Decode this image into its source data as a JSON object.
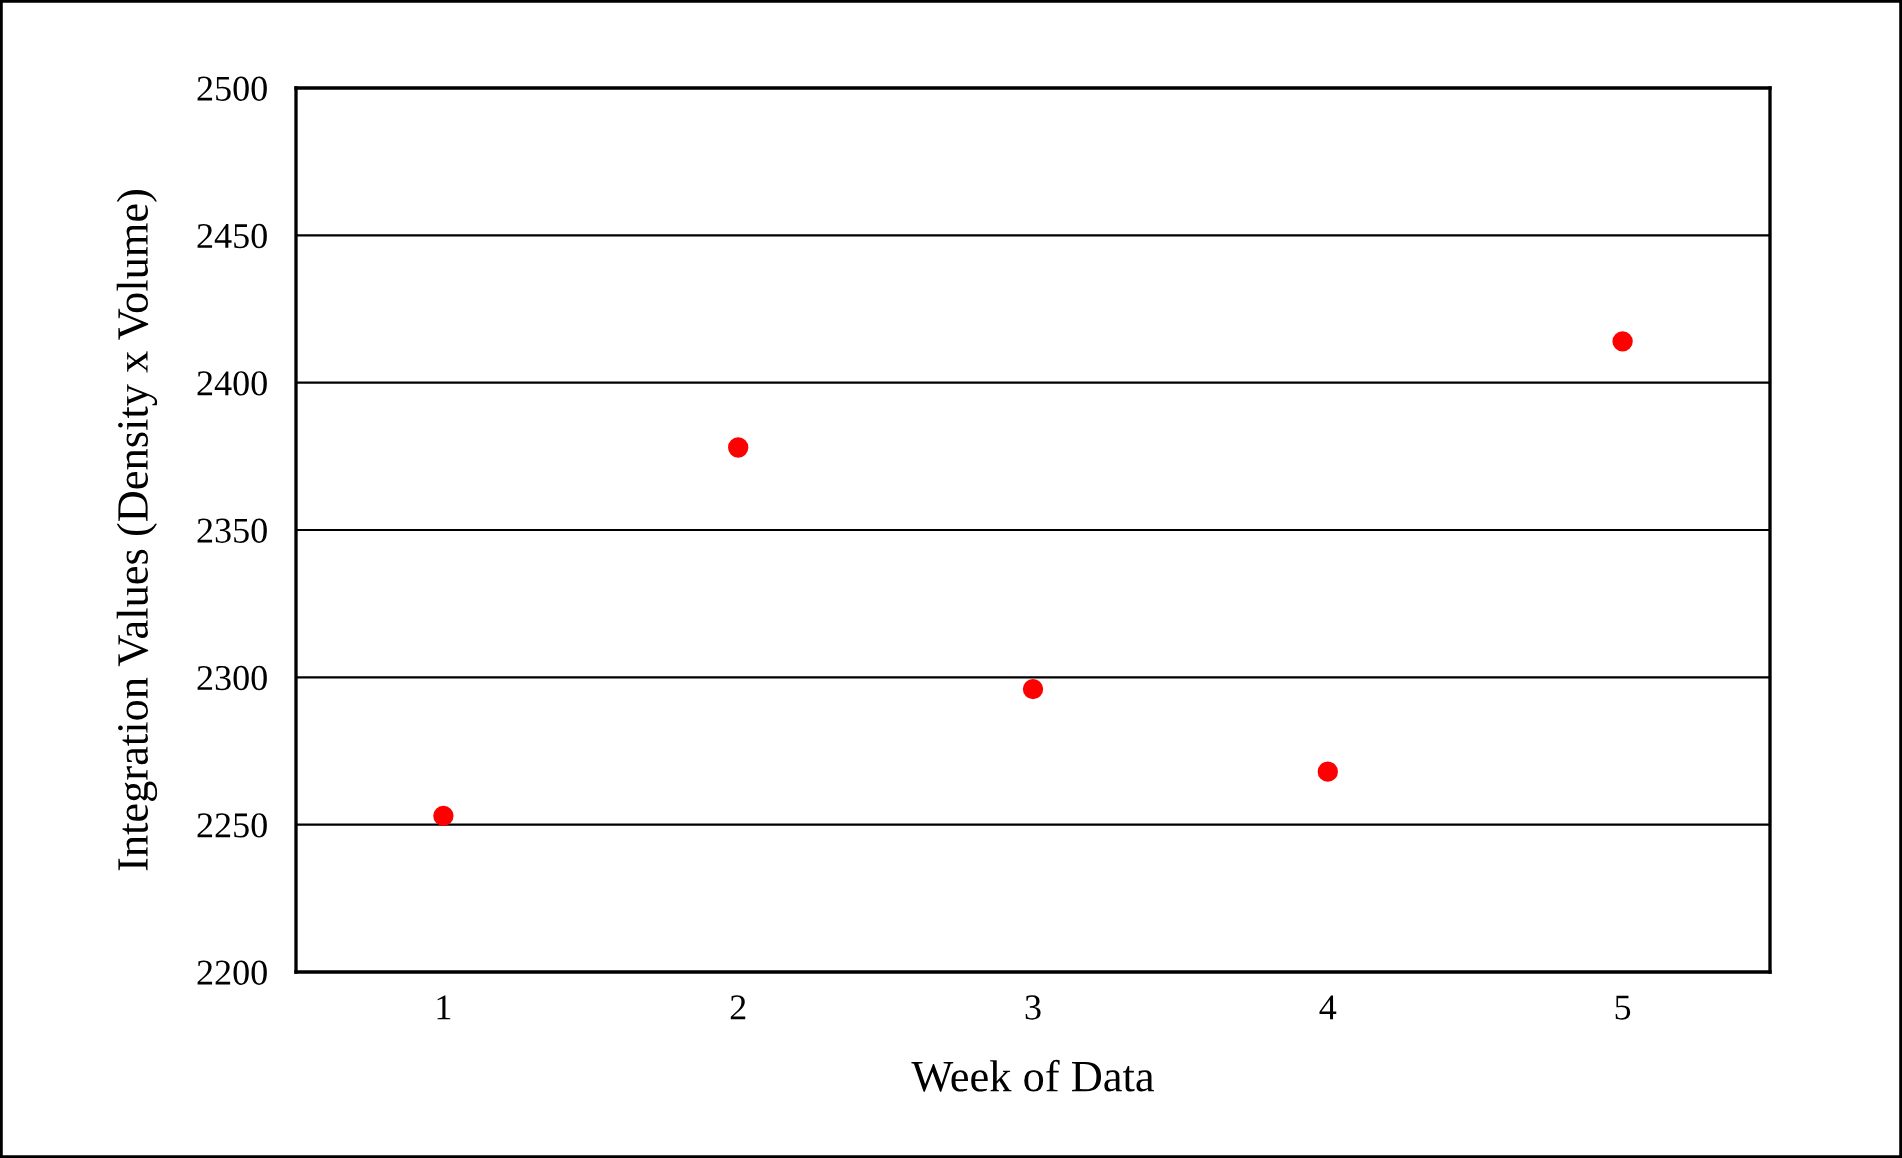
{
  "chart_data": {
    "type": "scatter",
    "xlabel": "Week of Data",
    "ylabel": "Integration Values (Density x Volume)",
    "x": [
      1,
      2,
      3,
      4,
      5
    ],
    "series": [
      {
        "color": "#ff0000",
        "values": [
          2253,
          2378,
          2296,
          2268,
          2414
        ]
      }
    ],
    "xlim": [
      0.5,
      5.5
    ],
    "xticks": [
      1,
      2,
      3,
      4,
      5
    ],
    "ylim": [
      2200,
      2500
    ],
    "yticks": [
      2200,
      2250,
      2300,
      2350,
      2400,
      2450,
      2500
    ],
    "grid": "y",
    "marker": "circle"
  }
}
